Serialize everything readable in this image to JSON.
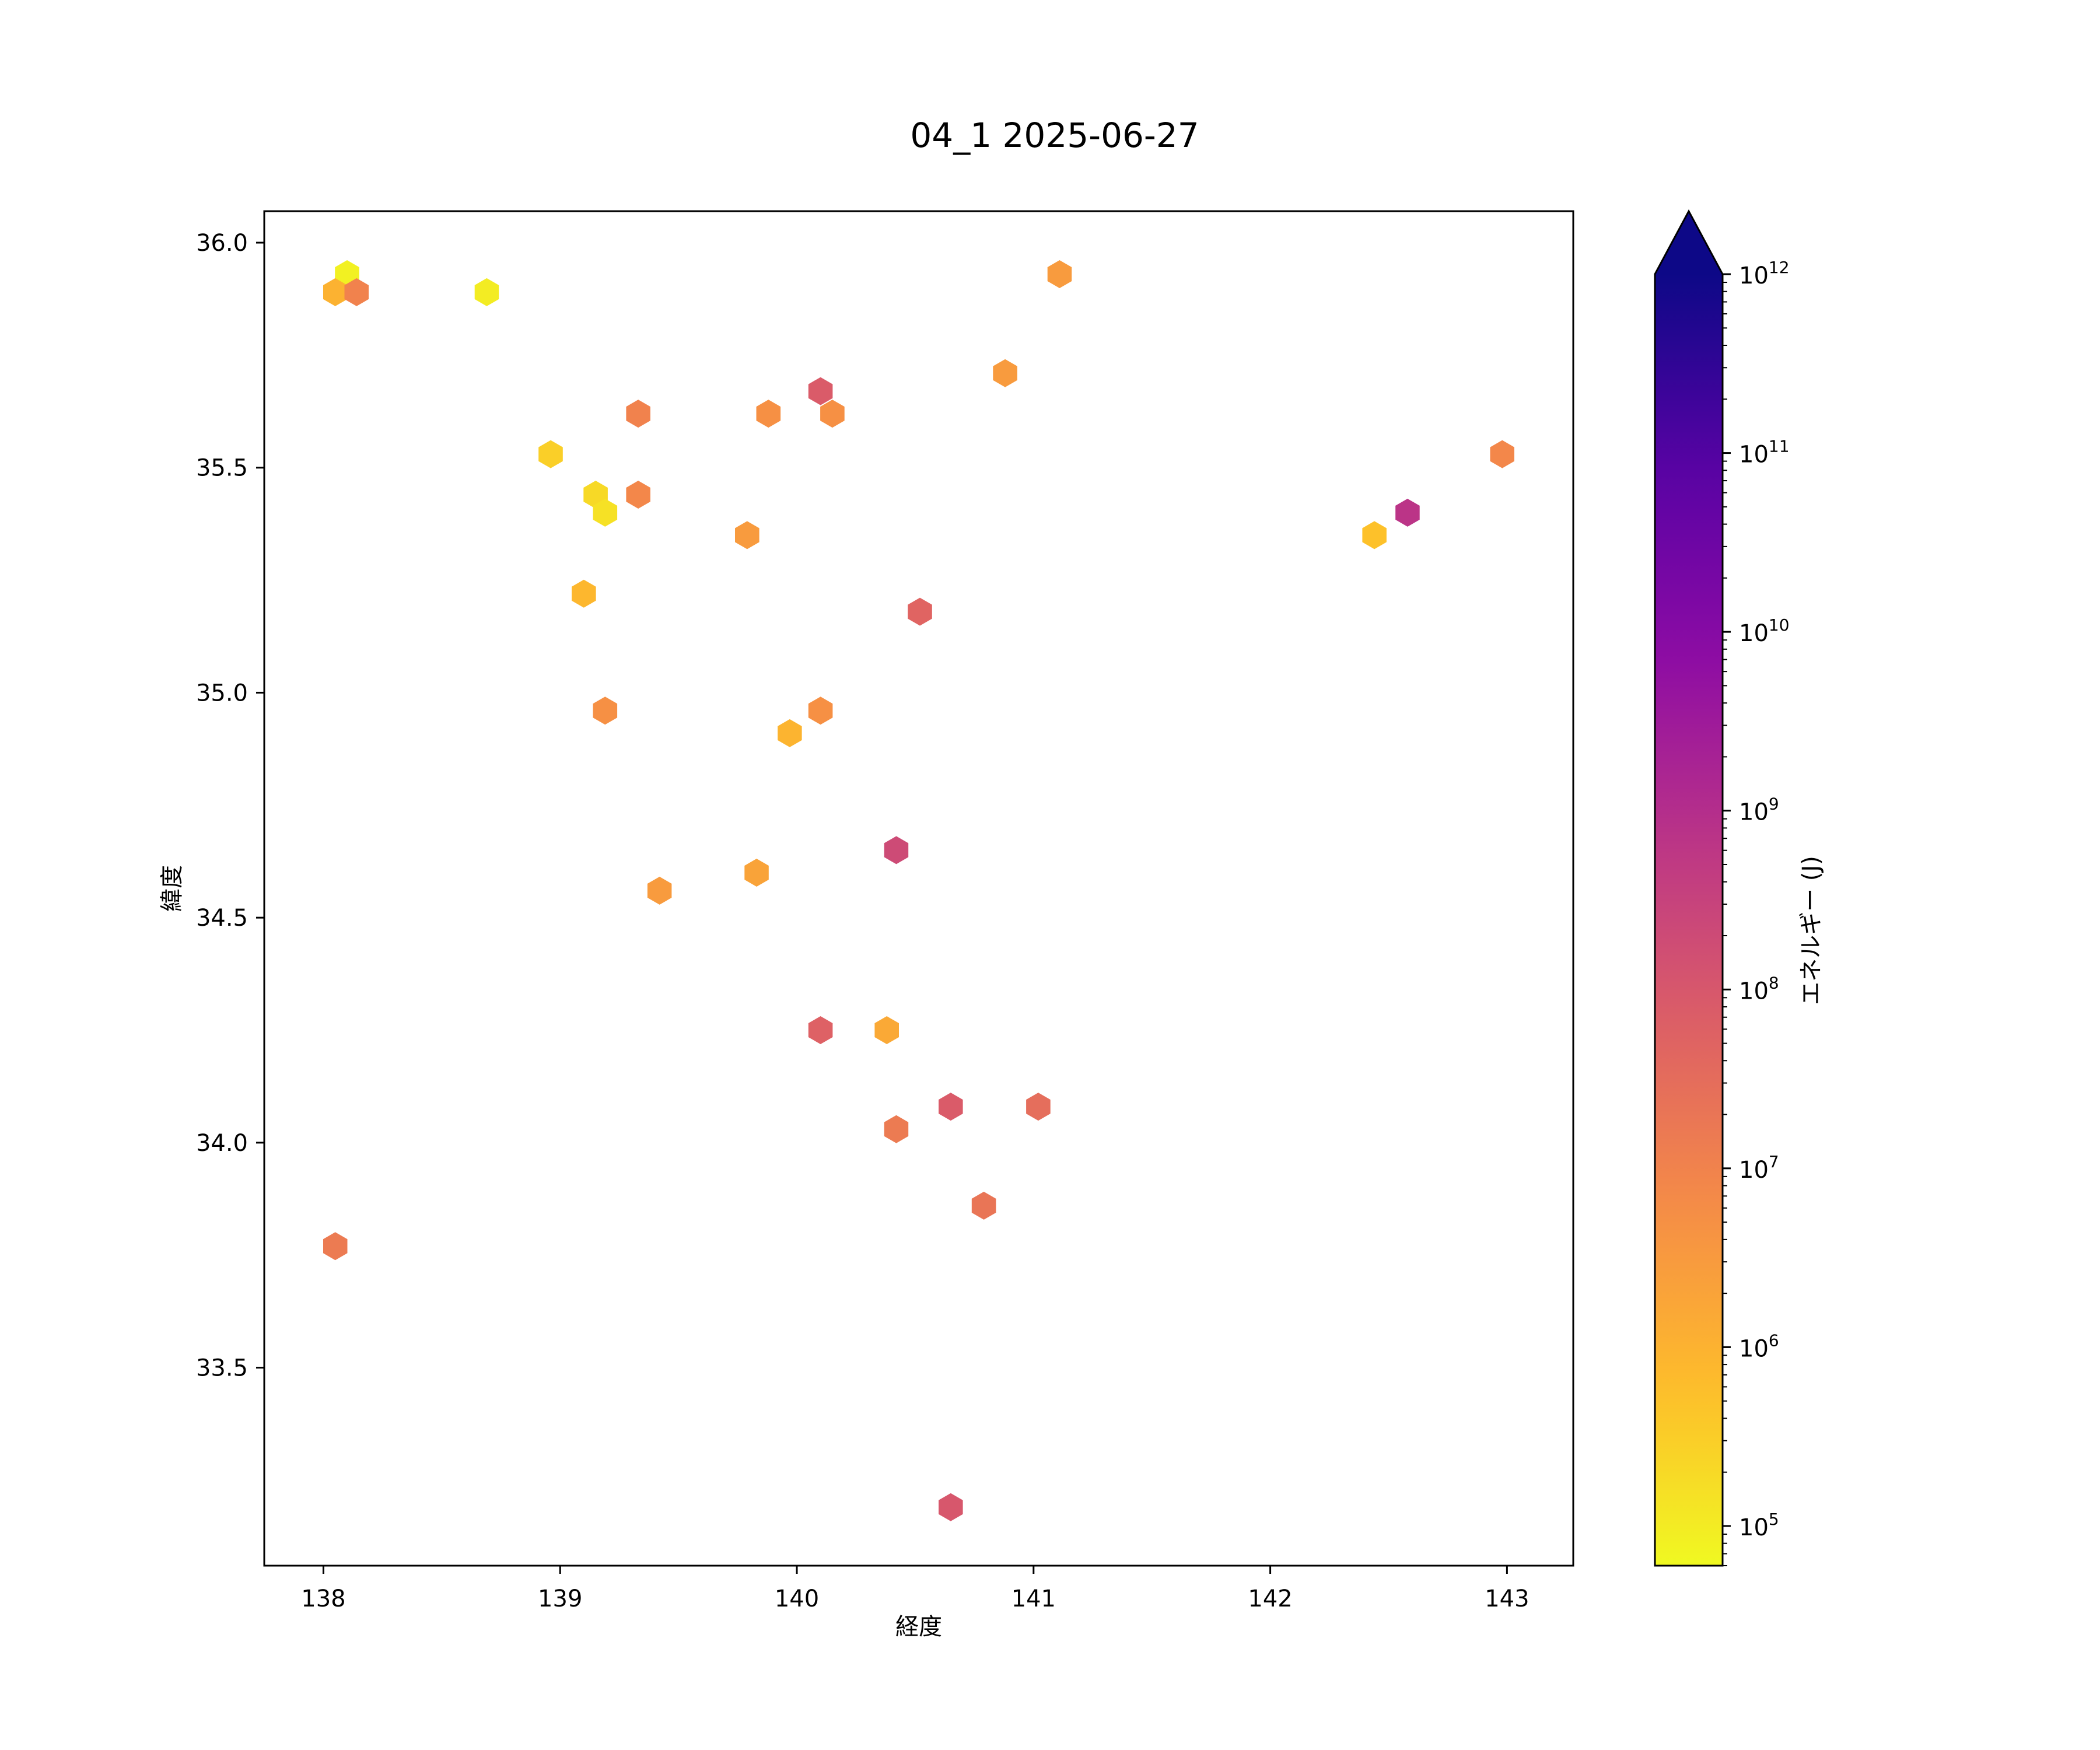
{
  "chart_data": {
    "type": "scatter",
    "marker": "hexbin",
    "title": "04_1 2025-06-27",
    "xlabel": "経度",
    "ylabel": "緯度",
    "xlim": [
      137.75,
      143.28
    ],
    "ylim": [
      33.06,
      36.07
    ],
    "xticks": [
      138,
      139,
      140,
      141,
      142,
      143
    ],
    "xtick_labels": [
      "138",
      "139",
      "140",
      "141",
      "142",
      "143"
    ],
    "yticks": [
      33.5,
      34.0,
      34.5,
      35.0,
      35.5,
      36.0
    ],
    "ytick_labels": [
      "33.5",
      "34.0",
      "34.5",
      "35.0",
      "35.5",
      "36.0"
    ],
    "grid": false,
    "colorbar": {
      "label": "エネルギー (J)",
      "scale": "log",
      "colormap": "plasma_r",
      "min": 60000,
      "max": 1000000000000,
      "extend": "max",
      "ticks": [
        100000,
        1000000,
        10000000,
        100000000,
        1000000000,
        10000000000,
        100000000000,
        1000000000000
      ],
      "tick_labels": [
        {
          "base": "10",
          "exp": "5"
        },
        {
          "base": "10",
          "exp": "6"
        },
        {
          "base": "10",
          "exp": "7"
        },
        {
          "base": "10",
          "exp": "8"
        },
        {
          "base": "10",
          "exp": "9"
        },
        {
          "base": "10",
          "exp": "10"
        },
        {
          "base": "10",
          "exp": "11"
        },
        {
          "base": "10",
          "exp": "12"
        }
      ]
    },
    "points": [
      {
        "x": 138.1,
        "y": 35.93,
        "energy": 80000
      },
      {
        "x": 138.05,
        "y": 35.89,
        "energy": 1000000
      },
      {
        "x": 138.14,
        "y": 35.89,
        "energy": 10000000
      },
      {
        "x": 138.69,
        "y": 35.89,
        "energy": 100000
      },
      {
        "x": 141.11,
        "y": 35.93,
        "energy": 3000000
      },
      {
        "x": 140.88,
        "y": 35.71,
        "energy": 3000000
      },
      {
        "x": 140.1,
        "y": 35.67,
        "energy": 80000000
      },
      {
        "x": 139.33,
        "y": 35.62,
        "energy": 10000000
      },
      {
        "x": 139.88,
        "y": 35.62,
        "energy": 5000000
      },
      {
        "x": 140.15,
        "y": 35.62,
        "energy": 5000000
      },
      {
        "x": 138.96,
        "y": 35.53,
        "energy": 300000
      },
      {
        "x": 142.98,
        "y": 35.53,
        "energy": 8000000
      },
      {
        "x": 139.15,
        "y": 35.44,
        "energy": 200000
      },
      {
        "x": 139.33,
        "y": 35.44,
        "energy": 8000000
      },
      {
        "x": 139.19,
        "y": 35.4,
        "energy": 150000
      },
      {
        "x": 142.58,
        "y": 35.4,
        "energy": 700000000
      },
      {
        "x": 139.79,
        "y": 35.35,
        "energy": 3000000
      },
      {
        "x": 142.44,
        "y": 35.35,
        "energy": 500000
      },
      {
        "x": 139.1,
        "y": 35.22,
        "energy": 800000
      },
      {
        "x": 140.52,
        "y": 35.18,
        "energy": 50000000
      },
      {
        "x": 139.19,
        "y": 34.96,
        "energy": 5000000
      },
      {
        "x": 140.1,
        "y": 34.96,
        "energy": 5000000
      },
      {
        "x": 139.97,
        "y": 34.91,
        "energy": 900000
      },
      {
        "x": 140.42,
        "y": 34.65,
        "energy": 200000000
      },
      {
        "x": 139.83,
        "y": 34.6,
        "energy": 2000000
      },
      {
        "x": 139.42,
        "y": 34.56,
        "energy": 3000000
      },
      {
        "x": 140.1,
        "y": 34.25,
        "energy": 60000000
      },
      {
        "x": 140.38,
        "y": 34.25,
        "energy": 1500000
      },
      {
        "x": 140.65,
        "y": 34.08,
        "energy": 80000000
      },
      {
        "x": 141.02,
        "y": 34.08,
        "energy": 30000000
      },
      {
        "x": 140.42,
        "y": 34.03,
        "energy": 15000000
      },
      {
        "x": 140.79,
        "y": 33.86,
        "energy": 20000000
      },
      {
        "x": 138.05,
        "y": 33.77,
        "energy": 15000000
      },
      {
        "x": 140.65,
        "y": 33.19,
        "energy": 100000000
      }
    ]
  }
}
